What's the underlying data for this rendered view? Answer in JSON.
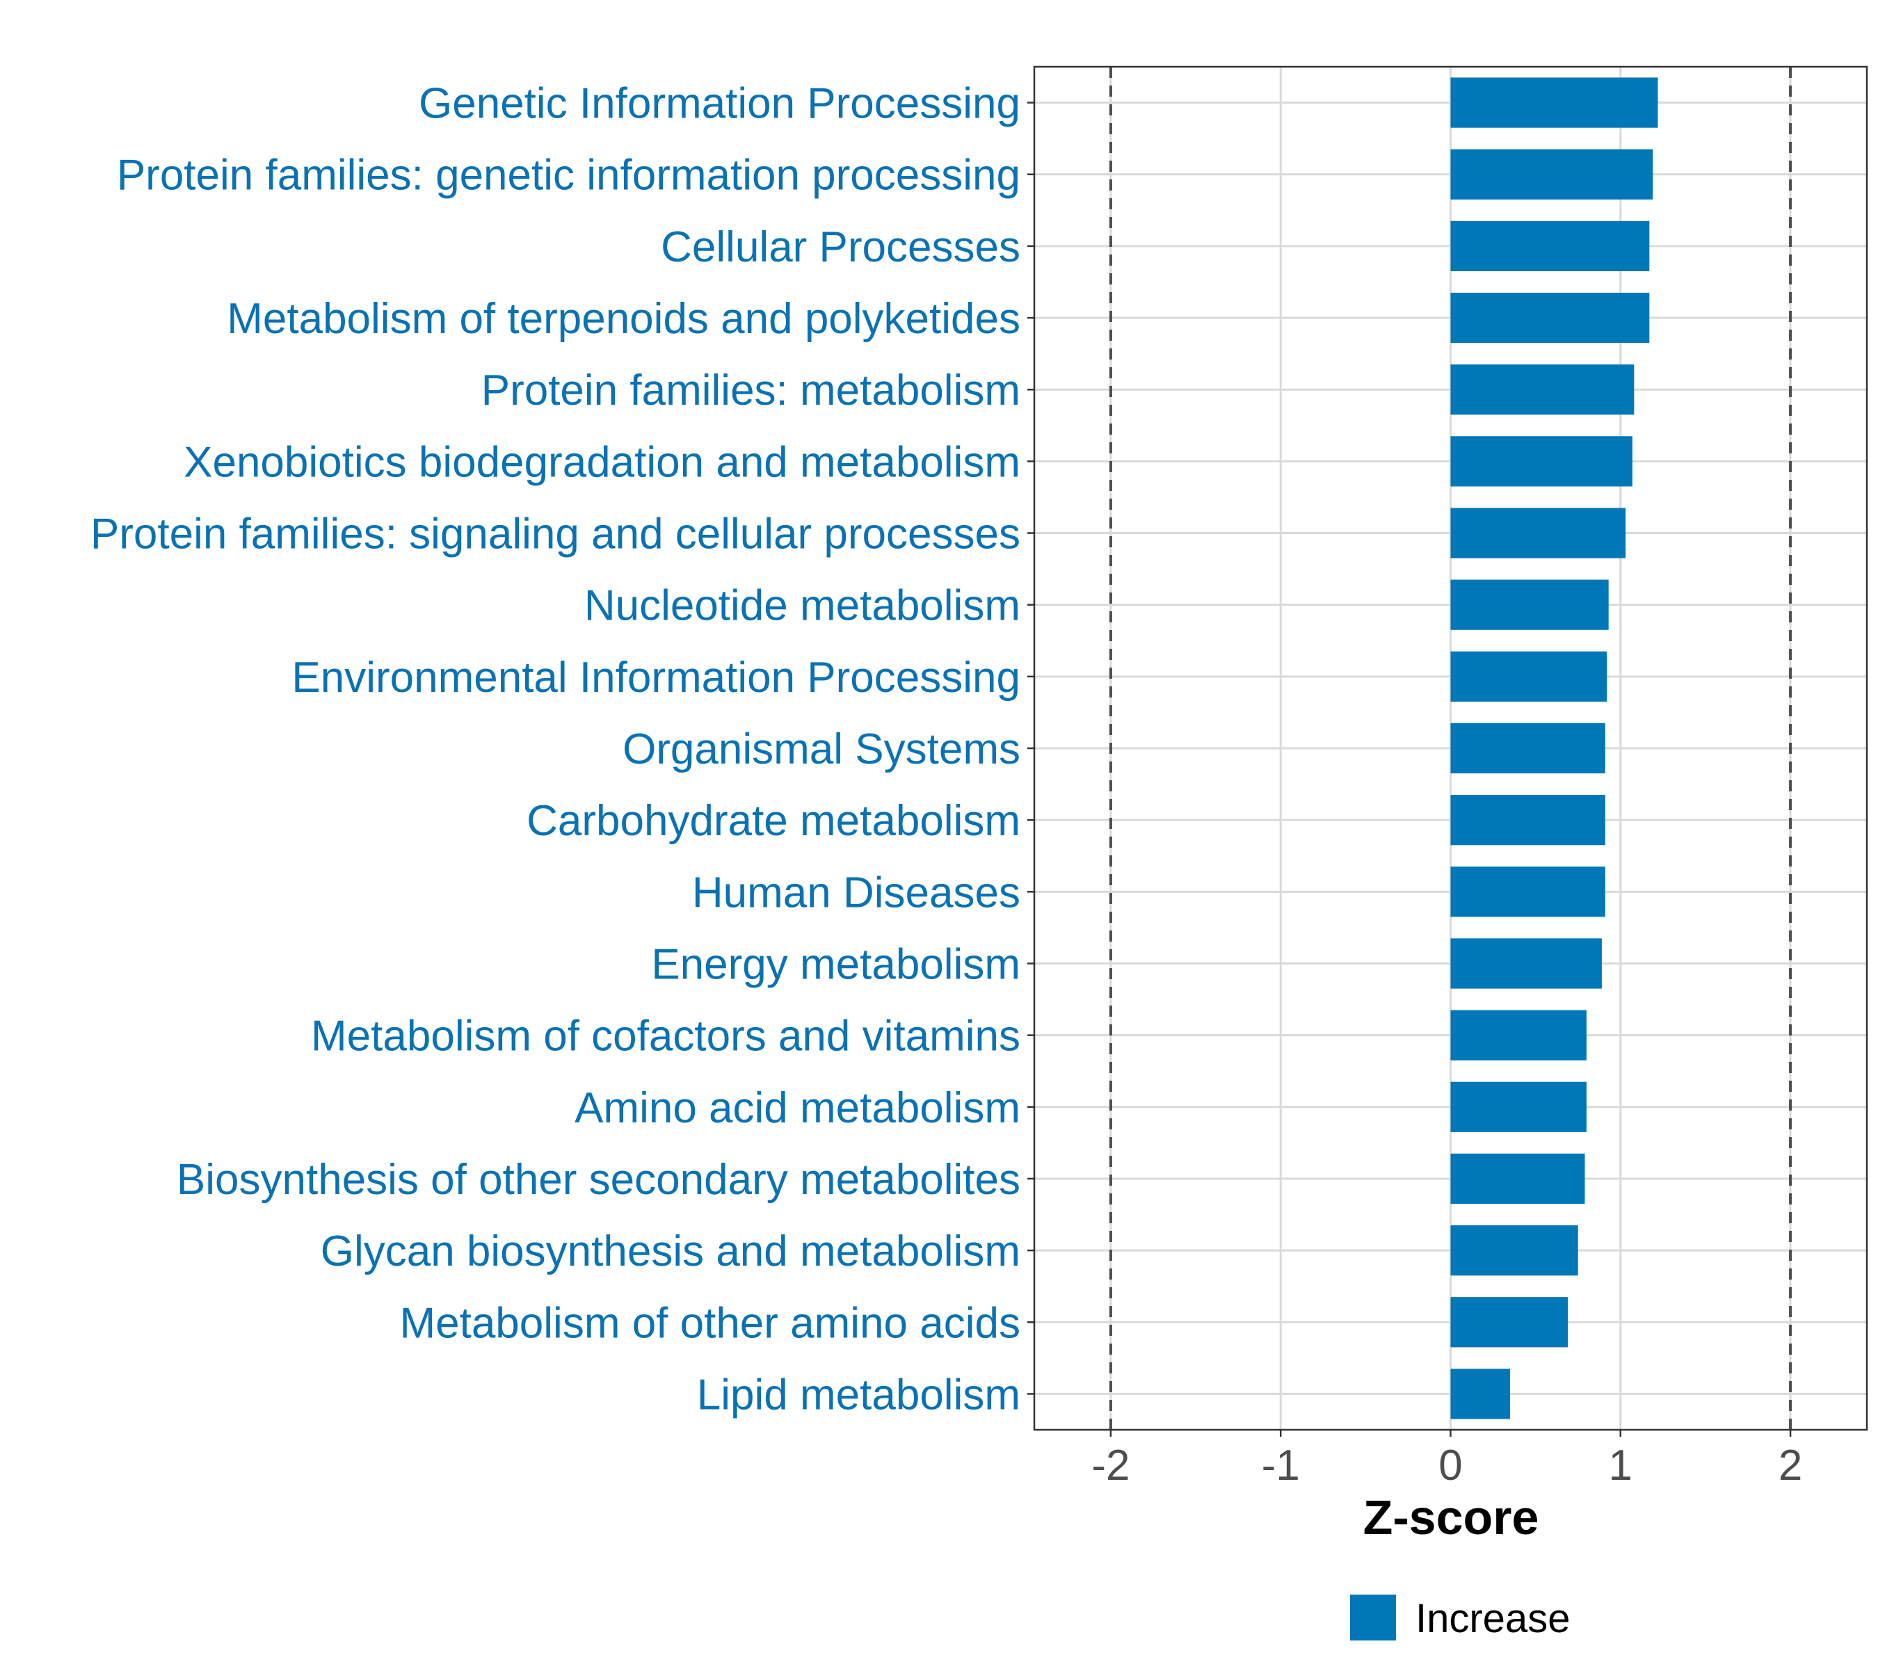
{
  "chart_data": {
    "type": "bar",
    "orientation": "horizontal",
    "title": "",
    "xlabel": "Z-score",
    "ylabel": "",
    "xlim": [
      -2.45,
      2.45
    ],
    "x_ticks": [
      -2,
      -1,
      0,
      1,
      2
    ],
    "x_tick_labels": [
      "-2",
      "-1",
      "0",
      "1",
      "2"
    ],
    "reference_lines": [
      -2,
      2
    ],
    "grid": true,
    "categories": [
      "Genetic Information Processing",
      "Protein families: genetic information processing",
      "Cellular Processes",
      "Metabolism of terpenoids and polyketides",
      "Protein families: metabolism",
      "Xenobiotics biodegradation and metabolism",
      "Protein families: signaling and cellular processes",
      "Nucleotide metabolism",
      "Environmental Information Processing",
      "Organismal Systems",
      "Carbohydrate metabolism",
      "Human Diseases",
      "Energy metabolism",
      "Metabolism of cofactors and vitamins",
      "Amino acid metabolism",
      "Biosynthesis of other secondary metabolites",
      "Glycan biosynthesis and metabolism",
      "Metabolism of other amino acids",
      "Lipid metabolism"
    ],
    "series": [
      {
        "name": "Increase",
        "values": [
          1.22,
          1.19,
          1.17,
          1.17,
          1.08,
          1.07,
          1.03,
          0.93,
          0.92,
          0.91,
          0.91,
          0.91,
          0.89,
          0.8,
          0.8,
          0.79,
          0.75,
          0.69,
          0.35
        ]
      }
    ],
    "legend": {
      "position": "bottom",
      "entries": [
        "Increase"
      ]
    }
  },
  "colors": {
    "bar": "#0077b6",
    "label": "#0a72b3",
    "grid": "#d9d9d9",
    "reference_line": "#4d4d4d",
    "tick": "#4d4d4d",
    "panel_border": "#333333"
  }
}
